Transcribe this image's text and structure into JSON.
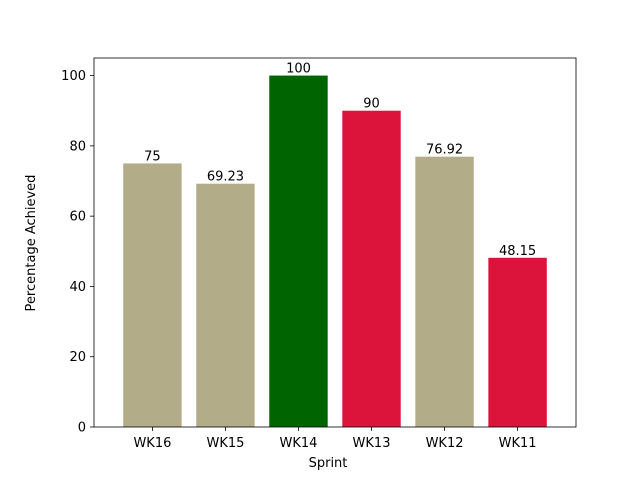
{
  "chart_data": {
    "type": "bar",
    "title": "",
    "xlabel": "Sprint",
    "ylabel": "Percentage Achieved",
    "categories": [
      "WK16",
      "WK15",
      "WK14",
      "WK13",
      "WK12",
      "WK11"
    ],
    "values": [
      75,
      69.23,
      100,
      90,
      76.92,
      48.15
    ],
    "value_labels": [
      "75",
      "69.23",
      "100",
      "90",
      "76.92",
      "48.15"
    ],
    "bar_colors": [
      "#b3ac89",
      "#b3ac89",
      "#006400",
      "#dc143c",
      "#b3ac89",
      "#dc143c"
    ],
    "ylim": [
      0,
      105
    ],
    "yticks": [
      0,
      20,
      40,
      60,
      80,
      100
    ],
    "grid": false,
    "legend": "none"
  }
}
